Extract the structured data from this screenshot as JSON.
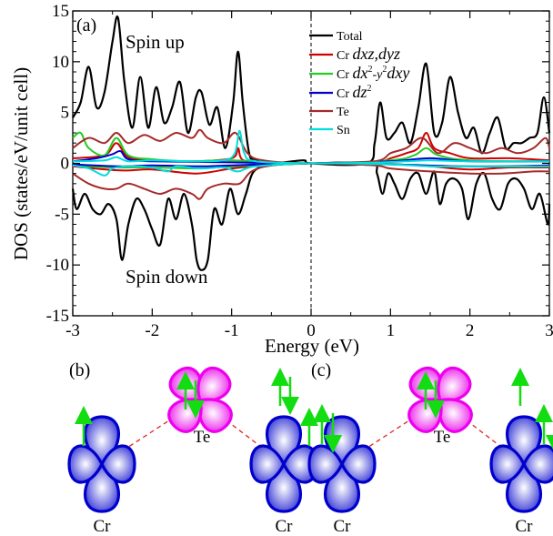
{
  "chart_data": {
    "type": "line",
    "panel_label": "(a)",
    "xlabel": "Energy (eV)",
    "ylabel": "DOS (states/eV/unit cell)",
    "xlim": [
      -3,
      3
    ],
    "ylim": [
      -15,
      15
    ],
    "x_ticks": [
      -3,
      -2,
      -1,
      0,
      1,
      2,
      3
    ],
    "y_ticks": [
      -15,
      -10,
      -5,
      0,
      5,
      10,
      15
    ],
    "fermi_level_line": 0,
    "annotations": {
      "spin_up": "Spin up",
      "spin_down": "Spin down"
    },
    "legend_position": "top-right",
    "series": [
      {
        "name": "Total",
        "color": "#000000",
        "up": [
          [
            -3.0,
            4.5
          ],
          [
            -2.9,
            6.0
          ],
          [
            -2.8,
            9.5
          ],
          [
            -2.7,
            5.5
          ],
          [
            -2.6,
            7.0
          ],
          [
            -2.5,
            12.0
          ],
          [
            -2.43,
            14.3
          ],
          [
            -2.35,
            8.0
          ],
          [
            -2.25,
            3.5
          ],
          [
            -2.15,
            8.5
          ],
          [
            -2.05,
            3.5
          ],
          [
            -1.95,
            7.5
          ],
          [
            -1.85,
            4.0
          ],
          [
            -1.75,
            5.5
          ],
          [
            -1.65,
            8.0
          ],
          [
            -1.55,
            3.0
          ],
          [
            -1.45,
            6.5
          ],
          [
            -1.38,
            7.0
          ],
          [
            -1.28,
            3.8
          ],
          [
            -1.18,
            5.5
          ],
          [
            -1.08,
            1.5
          ],
          [
            -0.98,
            6.0
          ],
          [
            -0.92,
            11.0
          ],
          [
            -0.86,
            6.0
          ],
          [
            -0.78,
            1.0
          ],
          [
            -0.7,
            0.4
          ],
          [
            -0.5,
            0.0
          ],
          [
            -0.1,
            0.3
          ],
          [
            0.0,
            0.0
          ],
          [
            0.7,
            0.0
          ],
          [
            0.8,
            2.0
          ],
          [
            0.87,
            6.0
          ],
          [
            0.95,
            2.5
          ],
          [
            1.05,
            3.0
          ],
          [
            1.15,
            4.0
          ],
          [
            1.25,
            2.0
          ],
          [
            1.35,
            5.5
          ],
          [
            1.45,
            9.8
          ],
          [
            1.55,
            3.0
          ],
          [
            1.65,
            4.0
          ],
          [
            1.75,
            8.5
          ],
          [
            1.85,
            5.0
          ],
          [
            1.95,
            2.5
          ],
          [
            2.05,
            3.5
          ],
          [
            2.15,
            1.0
          ],
          [
            2.25,
            3.0
          ],
          [
            2.35,
            4.5
          ],
          [
            2.45,
            1.5
          ],
          [
            2.55,
            2.0
          ],
          [
            2.65,
            2.0
          ],
          [
            2.75,
            2.5
          ],
          [
            2.85,
            3.0
          ],
          [
            2.93,
            6.5
          ],
          [
            3.0,
            3.0
          ]
        ],
        "down": [
          [
            -3.0,
            -2.5
          ],
          [
            -2.95,
            -4.5
          ],
          [
            -2.85,
            -3.0
          ],
          [
            -2.75,
            -4.5
          ],
          [
            -2.65,
            -5.0
          ],
          [
            -2.55,
            -4.0
          ],
          [
            -2.45,
            -5.5
          ],
          [
            -2.38,
            -9.5
          ],
          [
            -2.3,
            -6.0
          ],
          [
            -2.2,
            -3.5
          ],
          [
            -2.1,
            -4.5
          ],
          [
            -2.0,
            -6.5
          ],
          [
            -1.9,
            -8.0
          ],
          [
            -1.8,
            -3.5
          ],
          [
            -1.7,
            -5.5
          ],
          [
            -1.6,
            -3.0
          ],
          [
            -1.5,
            -6.0
          ],
          [
            -1.44,
            -9.5
          ],
          [
            -1.38,
            -10.5
          ],
          [
            -1.3,
            -9.5
          ],
          [
            -1.22,
            -4.5
          ],
          [
            -1.12,
            -6.0
          ],
          [
            -1.02,
            -2.5
          ],
          [
            -0.92,
            -5.0
          ],
          [
            -0.82,
            -3.0
          ],
          [
            -0.72,
            -0.8
          ],
          [
            -0.5,
            -0.2
          ],
          [
            0.0,
            0.0
          ],
          [
            0.75,
            0.0
          ],
          [
            0.83,
            -1.0
          ],
          [
            0.9,
            -3.0
          ],
          [
            0.97,
            -1.0
          ],
          [
            1.05,
            -2.0
          ],
          [
            1.15,
            -3.5
          ],
          [
            1.25,
            -1.5
          ],
          [
            1.35,
            -1.0
          ],
          [
            1.45,
            -3.0
          ],
          [
            1.55,
            -0.8
          ],
          [
            1.62,
            -4.0
          ],
          [
            1.7,
            -2.0
          ],
          [
            1.8,
            -1.5
          ],
          [
            1.9,
            -2.5
          ],
          [
            1.98,
            -5.5
          ],
          [
            2.08,
            -2.0
          ],
          [
            2.18,
            -1.0
          ],
          [
            2.28,
            -3.5
          ],
          [
            2.38,
            -4.5
          ],
          [
            2.48,
            -2.0
          ],
          [
            2.58,
            -1.5
          ],
          [
            2.68,
            -2.5
          ],
          [
            2.78,
            -4.5
          ],
          [
            2.88,
            -3.0
          ],
          [
            2.98,
            -6.0
          ],
          [
            3.0,
            -4.0
          ]
        ]
      },
      {
        "name": "Cr dxz,dyz",
        "color": "#d00000",
        "up": [
          [
            -3.0,
            0.5
          ],
          [
            -2.6,
            0.8
          ],
          [
            -2.45,
            2.0
          ],
          [
            -2.3,
            0.6
          ],
          [
            -2.0,
            0.3
          ],
          [
            -1.5,
            0.2
          ],
          [
            -1.0,
            0.5
          ],
          [
            -0.92,
            1.5
          ],
          [
            -0.85,
            0.3
          ],
          [
            -0.5,
            0.1
          ],
          [
            0.0,
            0.0
          ],
          [
            0.8,
            0.1
          ],
          [
            1.0,
            0.5
          ],
          [
            1.2,
            1.0
          ],
          [
            1.35,
            1.5
          ],
          [
            1.45,
            3.0
          ],
          [
            1.55,
            1.5
          ],
          [
            1.75,
            1.0
          ],
          [
            2.0,
            0.5
          ],
          [
            2.5,
            0.5
          ],
          [
            3.0,
            0.3
          ]
        ],
        "down": [
          [
            -3.0,
            -0.3
          ],
          [
            -2.4,
            -0.7
          ],
          [
            -2.0,
            -0.6
          ],
          [
            -1.45,
            -1.0
          ],
          [
            -1.0,
            -0.5
          ],
          [
            -0.6,
            -0.2
          ],
          [
            0.0,
            0.0
          ],
          [
            0.8,
            0.0
          ],
          [
            1.5,
            -0.3
          ],
          [
            2.0,
            -0.6
          ],
          [
            2.5,
            -0.4
          ],
          [
            3.0,
            -0.4
          ]
        ]
      },
      {
        "name": "Cr dx2-y2,dxy",
        "color": "#22cc22",
        "up": [
          [
            -3.0,
            2.5
          ],
          [
            -2.9,
            3.0
          ],
          [
            -2.8,
            1.5
          ],
          [
            -2.6,
            0.8
          ],
          [
            -2.45,
            2.5
          ],
          [
            -2.3,
            0.8
          ],
          [
            -2.0,
            0.4
          ],
          [
            -1.5,
            0.2
          ],
          [
            -1.0,
            0.3
          ],
          [
            0.0,
            0.0
          ],
          [
            1.0,
            0.3
          ],
          [
            1.3,
            0.8
          ],
          [
            1.45,
            1.5
          ],
          [
            1.6,
            0.8
          ],
          [
            2.0,
            0.3
          ],
          [
            3.0,
            0.2
          ]
        ],
        "down": [
          [
            -3.0,
            -0.2
          ],
          [
            -2.5,
            -0.4
          ],
          [
            -2.0,
            -0.4
          ],
          [
            -1.4,
            -0.5
          ],
          [
            -1.0,
            -0.3
          ],
          [
            0.0,
            0.0
          ],
          [
            1.0,
            -0.1
          ],
          [
            2.0,
            -0.3
          ],
          [
            3.0,
            -0.3
          ]
        ]
      },
      {
        "name": "Cr dz2",
        "color": "#0000cc",
        "up": [
          [
            -3.0,
            0.2
          ],
          [
            -2.7,
            0.5
          ],
          [
            -2.5,
            0.9
          ],
          [
            -2.4,
            1.2
          ],
          [
            -2.3,
            0.4
          ],
          [
            -2.0,
            0.2
          ],
          [
            -1.0,
            0.1
          ],
          [
            0.0,
            0.0
          ],
          [
            1.0,
            0.2
          ],
          [
            1.5,
            0.5
          ],
          [
            2.0,
            0.2
          ],
          [
            3.0,
            0.2
          ]
        ],
        "down": [
          [
            -3.0,
            -0.1
          ],
          [
            -2.4,
            -0.3
          ],
          [
            -2.0,
            -0.2
          ],
          [
            -1.4,
            -0.3
          ],
          [
            -1.0,
            -0.2
          ],
          [
            0.0,
            0.0
          ],
          [
            1.0,
            -0.1
          ],
          [
            2.0,
            -0.3
          ],
          [
            3.0,
            -0.2
          ]
        ]
      },
      {
        "name": "Te",
        "color": "#a52a2a",
        "up": [
          [
            -3.0,
            1.5
          ],
          [
            -2.8,
            2.5
          ],
          [
            -2.6,
            2.0
          ],
          [
            -2.45,
            3.0
          ],
          [
            -2.3,
            2.0
          ],
          [
            -2.1,
            2.8
          ],
          [
            -1.9,
            2.2
          ],
          [
            -1.7,
            3.0
          ],
          [
            -1.5,
            2.5
          ],
          [
            -1.4,
            3.3
          ],
          [
            -1.3,
            2.5
          ],
          [
            -1.1,
            2.0
          ],
          [
            -0.95,
            3.0
          ],
          [
            -0.8,
            1.0
          ],
          [
            -0.6,
            0.3
          ],
          [
            0.0,
            0.0
          ],
          [
            0.8,
            0.2
          ],
          [
            1.0,
            1.0
          ],
          [
            1.2,
            1.5
          ],
          [
            1.4,
            2.5
          ],
          [
            1.6,
            1.0
          ],
          [
            1.8,
            2.0
          ],
          [
            2.0,
            1.5
          ],
          [
            2.2,
            1.0
          ],
          [
            2.4,
            1.5
          ],
          [
            2.6,
            1.0
          ],
          [
            2.8,
            1.5
          ],
          [
            2.95,
            2.5
          ],
          [
            3.0,
            1.5
          ]
        ],
        "down": [
          [
            -3.0,
            -1.0
          ],
          [
            -2.8,
            -2.0
          ],
          [
            -2.6,
            -2.5
          ],
          [
            -2.45,
            -2.5
          ],
          [
            -2.3,
            -2.0
          ],
          [
            -2.1,
            -2.5
          ],
          [
            -1.9,
            -3.0
          ],
          [
            -1.7,
            -2.5
          ],
          [
            -1.5,
            -3.0
          ],
          [
            -1.4,
            -3.5
          ],
          [
            -1.3,
            -2.5
          ],
          [
            -1.1,
            -2.0
          ],
          [
            -0.9,
            -2.0
          ],
          [
            -0.75,
            -0.8
          ],
          [
            -0.5,
            -0.2
          ],
          [
            0.0,
            0.0
          ],
          [
            0.8,
            -0.2
          ],
          [
            1.0,
            -0.5
          ],
          [
            1.5,
            -0.8
          ],
          [
            2.0,
            -1.0
          ],
          [
            2.4,
            -1.0
          ],
          [
            2.8,
            -0.8
          ],
          [
            3.0,
            -0.8
          ]
        ]
      },
      {
        "name": "Sn",
        "color": "#00dddd",
        "up": [
          [
            -3.0,
            0.2
          ],
          [
            -2.6,
            0.3
          ],
          [
            -2.45,
            0.6
          ],
          [
            -2.3,
            0.2
          ],
          [
            -2.0,
            0.3
          ],
          [
            -1.5,
            0.2
          ],
          [
            -1.1,
            0.3
          ],
          [
            -0.96,
            1.0
          ],
          [
            -0.9,
            3.2
          ],
          [
            -0.84,
            1.0
          ],
          [
            -0.7,
            0.2
          ],
          [
            0.0,
            0.0
          ],
          [
            0.9,
            0.1
          ],
          [
            1.2,
            0.2
          ],
          [
            1.5,
            0.3
          ],
          [
            2.0,
            0.2
          ],
          [
            3.0,
            0.2
          ]
        ],
        "down": [
          [
            -3.0,
            -0.2
          ],
          [
            -2.8,
            -0.5
          ],
          [
            -2.6,
            -1.2
          ],
          [
            -2.5,
            -0.5
          ],
          [
            -2.3,
            -0.3
          ],
          [
            -2.0,
            -0.4
          ],
          [
            -1.8,
            -0.8
          ],
          [
            -1.7,
            -0.3
          ],
          [
            -1.4,
            -0.5
          ],
          [
            -1.1,
            -0.4
          ],
          [
            -0.92,
            -0.8
          ],
          [
            -0.7,
            -0.3
          ],
          [
            0.0,
            0.0
          ],
          [
            1.0,
            -0.1
          ],
          [
            1.5,
            -0.3
          ],
          [
            2.0,
            -0.3
          ],
          [
            3.0,
            -0.3
          ]
        ]
      }
    ]
  },
  "legend": [
    {
      "prefix": "",
      "main": "Total",
      "sup": "",
      "tail": "",
      "color": "#000000"
    },
    {
      "prefix": "Cr ",
      "main": "dxz,dyz",
      "sup": "",
      "tail": "",
      "color": "#d00000"
    },
    {
      "prefix": "Cr ",
      "main": "dx",
      "sup": "2",
      "tail": "-y",
      "sup2": "2",
      "tail2": "dxy",
      "color": "#22cc22"
    },
    {
      "prefix": "Cr ",
      "main": "dz",
      "sup": "2",
      "tail": "",
      "color": "#0000cc"
    },
    {
      "prefix": "",
      "main": "Te",
      "sup": "",
      "tail": "",
      "color": "#a52a2a"
    },
    {
      "prefix": "",
      "main": "Sn",
      "sup": "",
      "tail": "",
      "color": "#00dddd"
    }
  ],
  "schematics": [
    {
      "label": "(b)",
      "te": "Te",
      "cr_left": "Cr",
      "cr_right": "Cr"
    },
    {
      "label": "(c)",
      "te": "Te",
      "cr_left": "Cr",
      "cr_right": "Cr"
    }
  ],
  "colors": {
    "cr_orbital": "#0000cc",
    "te_orbital": "#ee00ee",
    "arrow": "#11dd11",
    "bond": "#dd2222"
  }
}
